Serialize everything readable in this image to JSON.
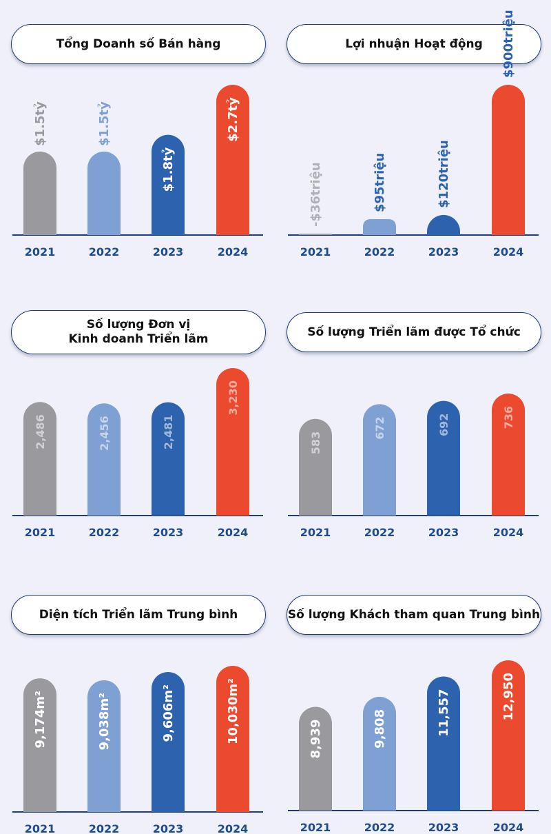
{
  "colors": {
    "2021": "#9a9a9e",
    "2022": "#7fa0d2",
    "2023": "#2d63ae",
    "2024": "#ec4a2f",
    "axis": "#1f3d78",
    "year_text": "#1e4a8e"
  },
  "chart_data": [
    {
      "type": "bar",
      "title": "Tổng Doanh số Bán hàng",
      "categories": [
        "2021",
        "2022",
        "2023",
        "2024"
      ],
      "values": [
        1.5,
        1.5,
        1.8,
        2.7
      ],
      "labels": [
        "$1.5tỷ",
        "$1.5tỷ",
        "$1.8tỷ",
        "$2.7tỷ"
      ],
      "ylim": [
        0,
        2.7
      ],
      "grid": false
    },
    {
      "type": "bar",
      "title": "Lợi nhuận Hoạt động",
      "categories": [
        "2021",
        "2022",
        "2023",
        "2024"
      ],
      "values": [
        -36,
        95,
        120,
        900
      ],
      "labels": [
        "-$36triệu",
        "$95triệu",
        "$120triệu",
        "$900triệu"
      ],
      "ylim": [
        0,
        900
      ],
      "grid": false
    },
    {
      "type": "bar",
      "title_lines": [
        "Số lượng Đơn vị",
        "Kinh doanh Triển lãm"
      ],
      "categories": [
        "2021",
        "2022",
        "2023",
        "2024"
      ],
      "values": [
        2486,
        2456,
        2481,
        3230
      ],
      "labels": [
        "2,486",
        "2,456",
        "2,481",
        "3,230"
      ],
      "ylim": [
        0,
        3230
      ],
      "grid": false
    },
    {
      "type": "bar",
      "title": "Số lượng Triển lãm được Tổ chức",
      "categories": [
        "2021",
        "2022",
        "2023",
        "2024"
      ],
      "values": [
        583,
        672,
        692,
        736
      ],
      "labels": [
        "583",
        "672",
        "692",
        "736"
      ],
      "ylim": [
        0,
        736
      ],
      "grid": false
    },
    {
      "type": "bar",
      "title": "Diện tích Triển lãm Trung bình",
      "categories": [
        "2021",
        "2022",
        "2023",
        "2024"
      ],
      "values": [
        9174,
        9038,
        9606,
        10030
      ],
      "labels": [
        "9,174m²",
        "9,038m²",
        "9,606m²",
        "10,030m²"
      ],
      "ylim": [
        0,
        10030
      ],
      "grid": false
    },
    {
      "type": "bar",
      "title": "Số lượng Khách tham quan Trung bình",
      "categories": [
        "2021",
        "2022",
        "2023",
        "2024"
      ],
      "values": [
        8939,
        9808,
        11557,
        12950
      ],
      "labels": [
        "8,939",
        "9,808",
        "11,557",
        "12,950"
      ],
      "ylim": [
        0,
        12950
      ],
      "grid": false
    }
  ]
}
